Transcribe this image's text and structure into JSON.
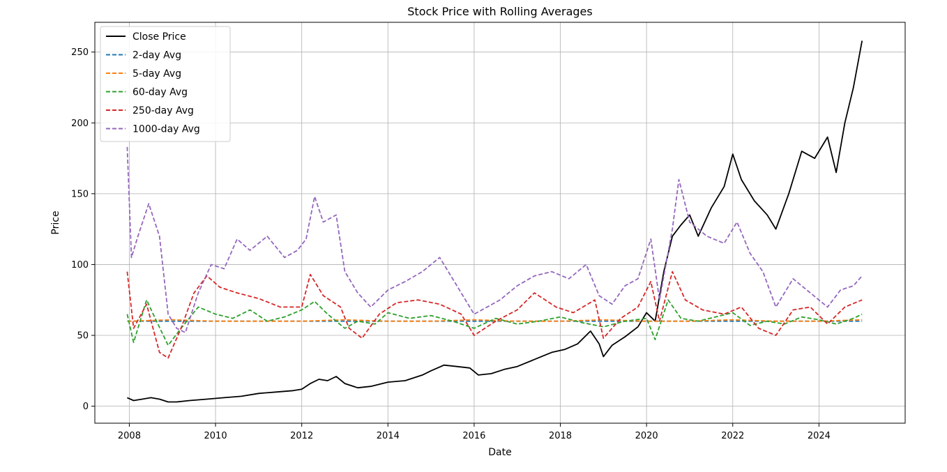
{
  "chart_data": {
    "type": "line",
    "title": "Stock Price with Rolling Averages",
    "xlabel": "Date",
    "ylabel": "Price",
    "xlim": [
      2007.2,
      2026.0
    ],
    "ylim": [
      -12,
      271
    ],
    "xticks": [
      2008,
      2010,
      2012,
      2014,
      2016,
      2018,
      2020,
      2022,
      2024
    ],
    "xtick_labels": [
      "2008",
      "2010",
      "2012",
      "2014",
      "2016",
      "2018",
      "2020",
      "2022",
      "2024"
    ],
    "yticks": [
      0,
      50,
      100,
      150,
      200,
      250
    ],
    "ytick_labels": [
      "0",
      "50",
      "100",
      "150",
      "200",
      "250"
    ],
    "grid": true,
    "legend_position": "top-left",
    "series": [
      {
        "name": "Close Price",
        "color": "#000000",
        "dash": "solid",
        "x": [
          2007.95,
          2008.1,
          2008.3,
          2008.5,
          2008.7,
          2008.9,
          2009.1,
          2009.4,
          2009.8,
          2010.2,
          2010.6,
          2011.0,
          2011.4,
          2011.8,
          2012.0,
          2012.2,
          2012.4,
          2012.6,
          2012.8,
          2013.0,
          2013.3,
          2013.6,
          2014.0,
          2014.4,
          2014.8,
          2015.0,
          2015.3,
          2015.6,
          2015.9,
          2016.1,
          2016.4,
          2016.7,
          2017.0,
          2017.4,
          2017.8,
          2018.1,
          2018.4,
          2018.7,
          2018.9,
          2019.0,
          2019.2,
          2019.5,
          2019.8,
          2020.0,
          2020.2,
          2020.4,
          2020.6,
          2020.8,
          2021.0,
          2021.2,
          2021.5,
          2021.8,
          2022.0,
          2022.2,
          2022.5,
          2022.8,
          2023.0,
          2023.3,
          2023.6,
          2023.9,
          2024.2,
          2024.4,
          2024.6,
          2024.8,
          2025.0
        ],
        "y": [
          6,
          4,
          5,
          6,
          5,
          3,
          3,
          4,
          5,
          6,
          7,
          9,
          10,
          11,
          12,
          16,
          19,
          18,
          21,
          16,
          13,
          14,
          17,
          18,
          22,
          25,
          29,
          28,
          27,
          22,
          23,
          26,
          28,
          33,
          38,
          40,
          44,
          53,
          44,
          35,
          43,
          49,
          56,
          66,
          60,
          95,
          120,
          128,
          135,
          120,
          140,
          155,
          178,
          160,
          145,
          135,
          125,
          150,
          180,
          175,
          190,
          165,
          200,
          225,
          258
        ]
      },
      {
        "name": "2-day Avg",
        "color": "#1f77b4",
        "dash": "dashed",
        "x": [
          2007.95,
          2009.0,
          2010.0,
          2011.0,
          2012.0,
          2013.0,
          2014.0,
          2015.0,
          2016.0,
          2017.0,
          2018.0,
          2019.0,
          2020.0,
          2021.0,
          2022.0,
          2023.0,
          2024.0,
          2025.0
        ],
        "y": [
          60,
          60,
          60,
          60,
          60,
          60,
          60,
          60,
          60,
          60,
          60,
          60,
          60,
          60,
          60,
          60,
          60,
          60
        ]
      },
      {
        "name": "5-day Avg",
        "color": "#ff7f0e",
        "dash": "dashed",
        "x": [
          2007.95,
          2009.0,
          2010.0,
          2011.0,
          2012.0,
          2013.0,
          2014.0,
          2015.0,
          2016.0,
          2017.0,
          2018.0,
          2019.0,
          2020.0,
          2021.0,
          2022.0,
          2023.0,
          2024.0,
          2025.0
        ],
        "y": [
          60,
          61,
          60,
          60,
          60,
          61,
          60,
          60,
          61,
          60,
          60,
          61,
          60,
          60,
          61,
          60,
          60,
          61
        ]
      },
      {
        "name": "60-day Avg",
        "color": "#2ca02c",
        "dash": "dashed",
        "x": [
          2007.95,
          2008.1,
          2008.4,
          2008.6,
          2008.9,
          2009.2,
          2009.6,
          2010.0,
          2010.4,
          2010.8,
          2011.2,
          2011.6,
          2012.0,
          2012.3,
          2012.6,
          2013.0,
          2013.3,
          2013.7,
          2014.0,
          2014.5,
          2015.0,
          2015.5,
          2016.0,
          2016.5,
          2017.0,
          2017.5,
          2018.0,
          2018.5,
          2019.0,
          2019.5,
          2020.0,
          2020.2,
          2020.5,
          2020.8,
          2021.2,
          2021.6,
          2022.0,
          2022.4,
          2022.8,
          2023.2,
          2023.6,
          2024.0,
          2024.4,
          2024.8,
          2025.0
        ],
        "y": [
          65,
          45,
          75,
          62,
          43,
          55,
          70,
          65,
          62,
          68,
          60,
          63,
          68,
          74,
          65,
          55,
          60,
          58,
          66,
          62,
          64,
          60,
          55,
          62,
          58,
          60,
          63,
          59,
          56,
          60,
          62,
          47,
          75,
          62,
          60,
          63,
          66,
          57,
          60,
          58,
          63,
          61,
          58,
          62,
          65
        ]
      },
      {
        "name": "250-day Avg",
        "color": "#d62728",
        "dash": "dashed",
        "x": [
          2007.95,
          2008.1,
          2008.4,
          2008.7,
          2008.9,
          2009.2,
          2009.5,
          2009.8,
          2010.1,
          2010.5,
          2011.0,
          2011.5,
          2012.0,
          2012.2,
          2012.5,
          2012.9,
          2013.1,
          2013.4,
          2013.8,
          2014.2,
          2014.7,
          2015.2,
          2015.7,
          2016.0,
          2016.5,
          2017.0,
          2017.4,
          2017.9,
          2018.3,
          2018.8,
          2019.0,
          2019.4,
          2019.8,
          2020.1,
          2020.3,
          2020.6,
          2020.9,
          2021.3,
          2021.8,
          2022.2,
          2022.6,
          2023.0,
          2023.4,
          2023.8,
          2024.2,
          2024.6,
          2025.0
        ],
        "y": [
          95,
          55,
          72,
          38,
          34,
          55,
          80,
          92,
          84,
          80,
          76,
          70,
          70,
          93,
          78,
          70,
          55,
          48,
          65,
          73,
          75,
          72,
          65,
          50,
          60,
          68,
          80,
          70,
          66,
          75,
          48,
          62,
          70,
          88,
          60,
          95,
          75,
          68,
          65,
          70,
          55,
          50,
          68,
          70,
          58,
          70,
          75
        ]
      },
      {
        "name": "1000-day Avg",
        "color": "#9467bd",
        "dash": "dashed",
        "x": [
          2007.95,
          2008.05,
          2008.2,
          2008.45,
          2008.7,
          2008.9,
          2009.1,
          2009.3,
          2009.6,
          2009.9,
          2010.2,
          2010.5,
          2010.8,
          2011.2,
          2011.6,
          2011.9,
          2012.1,
          2012.3,
          2012.5,
          2012.8,
          2013.0,
          2013.3,
          2013.6,
          2014.0,
          2014.4,
          2014.8,
          2015.2,
          2015.6,
          2016.0,
          2016.3,
          2016.6,
          2017.0,
          2017.4,
          2017.8,
          2018.2,
          2018.6,
          2018.9,
          2019.2,
          2019.5,
          2019.8,
          2020.1,
          2020.3,
          2020.6,
          2020.75,
          2021.0,
          2021.4,
          2021.8,
          2022.1,
          2022.4,
          2022.7,
          2023.0,
          2023.4,
          2023.8,
          2024.2,
          2024.5,
          2024.8,
          2025.0
        ],
        "y": [
          183,
          105,
          120,
          143,
          120,
          65,
          55,
          52,
          80,
          100,
          97,
          118,
          110,
          120,
          105,
          110,
          118,
          148,
          130,
          135,
          95,
          80,
          70,
          82,
          88,
          95,
          105,
          85,
          65,
          70,
          75,
          85,
          92,
          95,
          90,
          100,
          78,
          72,
          85,
          90,
          118,
          75,
          125,
          160,
          130,
          120,
          115,
          130,
          108,
          95,
          70,
          90,
          80,
          70,
          82,
          85,
          92
        ]
      }
    ]
  }
}
